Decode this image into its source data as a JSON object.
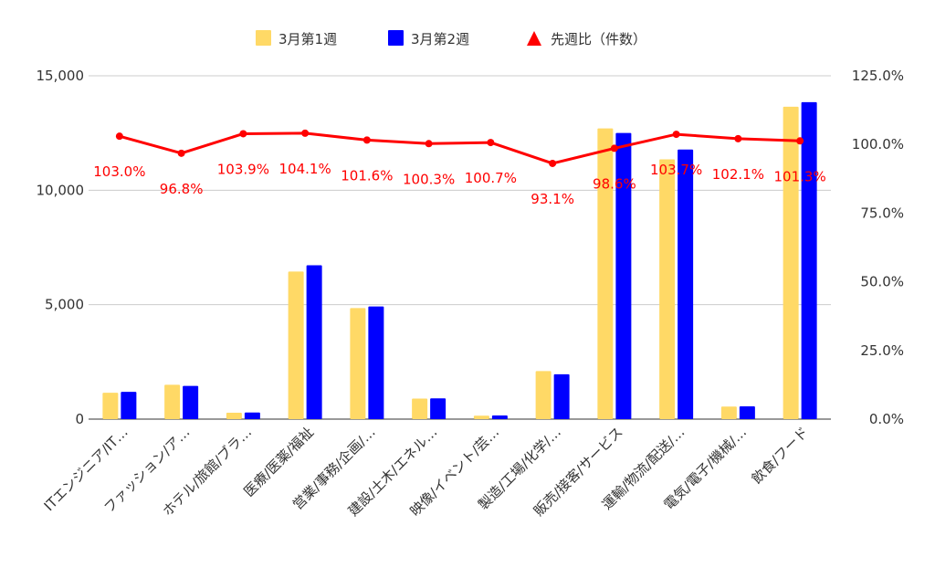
{
  "chart_data": {
    "type": "bar",
    "categories": [
      "ITエンジニア/IT…",
      "ファッション/ア…",
      "ホテル/旅館/ブラ…",
      "医療/医薬/福祉",
      "営業/事務/企画/…",
      "建設/土木/エネル…",
      "映像/イベント/芸…",
      "製造/工場/化学/…",
      "販売/接客/サービス",
      "運輸/物流/配送/…",
      "電気/電子/機械/…",
      "飲食/フード"
    ],
    "series": [
      {
        "name": "3月第1週",
        "type": "bar",
        "color": "#ffd966",
        "values": [
          1150,
          1500,
          280,
          6450,
          4850,
          900,
          150,
          2100,
          12700,
          11350,
          550,
          13650
        ]
      },
      {
        "name": "3月第2週",
        "type": "bar",
        "color": "#0000ff",
        "values": [
          1190,
          1450,
          290,
          6720,
          4920,
          910,
          160,
          1960,
          12500,
          11780,
          560,
          13850
        ]
      },
      {
        "name": "先週比（件数）",
        "type": "line",
        "axis": "right",
        "color": "#ff0000",
        "values": [
          103.0,
          96.8,
          103.9,
          104.1,
          101.6,
          100.3,
          100.7,
          93.1,
          98.6,
          103.7,
          102.1,
          101.3
        ],
        "labels": [
          "103.0%",
          "96.8%",
          "103.9%",
          "104.1%",
          "101.6%",
          "100.3%",
          "100.7%",
          "93.1%",
          "98.6%",
          "103.7%",
          "102.1%",
          "101.3%"
        ]
      }
    ],
    "left_axis": {
      "ylim": [
        0,
        15000
      ],
      "ticks": [
        "0",
        "5,000",
        "10,000",
        "15,000"
      ],
      "tick_values": [
        0,
        5000,
        10000,
        15000
      ]
    },
    "right_axis": {
      "ylim": [
        0,
        125
      ],
      "ticks": [
        "0.0%",
        "25.0%",
        "50.0%",
        "75.0%",
        "100.0%",
        "125.0%"
      ],
      "tick_values": [
        0,
        25,
        50,
        75,
        100,
        125
      ]
    },
    "grid": true,
    "legend_position": "top-center"
  }
}
